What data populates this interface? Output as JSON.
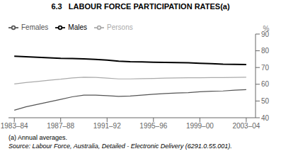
{
  "chart_data": {
    "type": "line",
    "title": "6.3   LABOUR FORCE PARTICIPATION RATES(a)",
    "ylabel": "%",
    "annotations": [
      "(a) Annual averages.",
      "Source: Labour Force, Australia, Detailed - Electronic Delivery (6291.0.55.001)."
    ],
    "x": [
      1983.5,
      1984.5,
      1985.5,
      1986.5,
      1987.5,
      1988.5,
      1989.5,
      1990.5,
      1991.5,
      1992.5,
      1993.5,
      1994.5,
      1995.5,
      1996.5,
      1997.5,
      1998.5,
      1999.5,
      2000.5,
      2001.5,
      2002.5,
      2003.5
    ],
    "series": [
      {
        "name": "Males",
        "color": "#000000",
        "values": [
          76.8,
          76.4,
          76.1,
          75.8,
          75.5,
          75.4,
          75.2,
          74.9,
          74.4,
          73.8,
          73.5,
          73.4,
          73.2,
          73.0,
          72.9,
          72.8,
          72.5,
          72.3,
          72.0,
          71.9,
          71.8
        ]
      },
      {
        "name": "Females",
        "color": "#555555",
        "values": [
          44.5,
          46.5,
          48.0,
          49.5,
          51.0,
          52.5,
          53.5,
          53.5,
          53.2,
          52.8,
          53.0,
          53.5,
          54.0,
          54.5,
          54.8,
          55.0,
          55.5,
          55.8,
          56.0,
          56.5,
          56.8
        ]
      },
      {
        "name": "Persons",
        "color": "#aaaaaa",
        "values": [
          60.2,
          61.0,
          61.7,
          62.4,
          63.0,
          63.8,
          64.2,
          64.1,
          63.7,
          63.2,
          63.2,
          63.4,
          63.5,
          63.7,
          63.8,
          63.9,
          63.9,
          64.0,
          64.0,
          64.1,
          64.2
        ]
      }
    ],
    "xlim": [
      1983.0,
      2004.3
    ],
    "xticks": [
      {
        "value": 1983.5,
        "label": "1983–84"
      },
      {
        "value": 1987.5,
        "label": "1987–88"
      },
      {
        "value": 1991.5,
        "label": "1991–92"
      },
      {
        "value": 1995.5,
        "label": "1995–96"
      },
      {
        "value": 1999.5,
        "label": "1999–00"
      },
      {
        "value": 2003.5,
        "label": "2003–04"
      }
    ],
    "ylim": [
      40,
      90
    ],
    "yticks": [
      40,
      50,
      60,
      70,
      80,
      90
    ],
    "grid": false,
    "legend": "upper left"
  }
}
